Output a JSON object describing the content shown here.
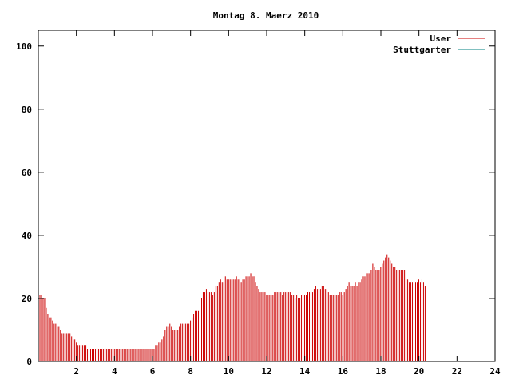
{
  "chart_data": {
    "type": "bar",
    "title": "Montag 8. Maerz 2010",
    "xlabel": "",
    "ylabel": "",
    "xlim": [
      0,
      24
    ],
    "ylim": [
      0,
      105
    ],
    "x_ticks": [
      2,
      4,
      6,
      8,
      10,
      12,
      14,
      16,
      18,
      20,
      22,
      24
    ],
    "y_ticks": [
      0,
      20,
      40,
      60,
      80,
      100
    ],
    "grid": false,
    "legend_position": "top-right",
    "series": [
      {
        "name": "User",
        "color": "#cc0000",
        "x_start": 0,
        "x_step": 0.0833,
        "values": [
          20,
          21,
          21,
          20,
          20,
          17,
          15,
          14,
          14,
          13,
          12,
          12,
          11,
          11,
          10,
          9,
          9,
          9,
          9,
          9,
          9,
          8,
          7,
          7,
          6,
          5,
          5,
          5,
          5,
          5,
          5,
          4,
          4,
          4,
          4,
          4,
          4,
          4,
          4,
          4,
          4,
          4,
          4,
          4,
          4,
          4,
          4,
          4,
          4,
          4,
          4,
          4,
          4,
          4,
          4,
          4,
          4,
          4,
          4,
          4,
          4,
          4,
          4,
          4,
          4,
          4,
          4,
          4,
          4,
          4,
          4,
          4,
          4,
          4,
          5,
          5,
          6,
          6,
          7,
          8,
          10,
          11,
          11,
          12,
          11,
          10,
          10,
          10,
          10,
          11,
          12,
          12,
          12,
          12,
          12,
          12,
          13,
          14,
          15,
          16,
          16,
          16,
          18,
          20,
          22,
          22,
          23,
          22,
          22,
          22,
          21,
          22,
          24,
          24,
          25,
          26,
          25,
          25,
          27,
          26,
          26,
          26,
          26,
          26,
          26,
          27,
          26,
          26,
          25,
          26,
          26,
          27,
          27,
          27,
          28,
          27,
          27,
          25,
          24,
          23,
          22,
          22,
          22,
          22,
          21,
          21,
          21,
          21,
          21,
          22,
          22,
          22,
          22,
          22,
          21,
          22,
          22,
          22,
          22,
          22,
          21,
          21,
          20,
          21,
          20,
          20,
          21,
          21,
          21,
          21,
          22,
          22,
          22,
          22,
          23,
          24,
          23,
          23,
          23,
          24,
          24,
          23,
          23,
          22,
          21,
          21,
          21,
          21,
          21,
          21,
          22,
          22,
          21,
          22,
          23,
          24,
          25,
          24,
          24,
          24,
          25,
          24,
          25,
          25,
          26,
          27,
          27,
          28,
          28,
          28,
          29,
          31,
          30,
          29,
          29,
          29,
          30,
          31,
          32,
          33,
          34,
          33,
          32,
          31,
          30,
          30,
          29,
          29,
          29,
          29,
          29,
          29,
          26,
          26,
          25,
          25,
          25,
          25,
          25,
          25,
          26,
          25,
          26,
          25,
          24
        ]
      },
      {
        "name": "Stuttgarter",
        "color": "#008080",
        "values": []
      }
    ]
  }
}
